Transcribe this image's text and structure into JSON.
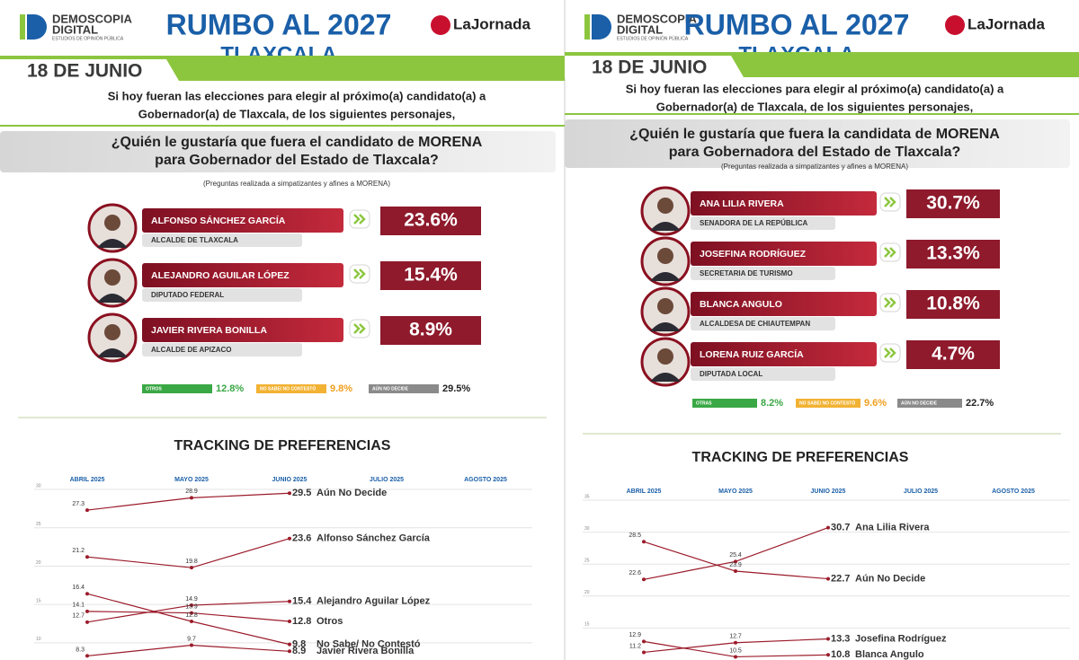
{
  "panels": [
    {
      "brand": "DEMOSCOPIA",
      "brand2": "DIGITAL",
      "brand_sub": "ESTUDIOS DE OPINIÓN PÚBLICA",
      "title": "RUMBO AL 2027",
      "subtitle": "TLAXCALA",
      "partner": "LaJornada",
      "date": "18 DE JUNIO",
      "intro": [
        "Si hoy fueran las elecciones para elegir al próximo(a) candidato(a) a",
        "Gobernador(a) de Tlaxcala, de los siguientes personajes,"
      ],
      "question": [
        "¿Quién le gustaría que fuera el candidato de MORENA",
        "para Gobernador del Estado de Tlaxcala?"
      ],
      "note": "(Preguntas realizada a simpatizantes y afines a MORENA)",
      "candidates": [
        {
          "name": "ALFONSO SÁNCHEZ GARCÍA",
          "role": "ALCALDE DE TLAXCALA",
          "result": "23.6%"
        },
        {
          "name": "ALEJANDRO AGUILAR LÓPEZ",
          "role": "DIPUTADO FEDERAL",
          "result": "15.4%"
        },
        {
          "name": "JAVIER RIVERA BONILLA",
          "role": "ALCALDE DE APIZACO",
          "result": "8.9%"
        }
      ],
      "others": [
        {
          "label": "OTROS",
          "result": "12.8%"
        },
        {
          "label": "NO SABE/ NO CONTESTÓ",
          "result": "9.8%"
        },
        {
          "label": "AÚN NO DECIDE",
          "result": "29.5%"
        }
      ],
      "tracking_title": "TRACKING DE PREFERENCIAS"
    },
    {
      "brand": "DEMOSCOPIA",
      "brand2": "DIGITAL",
      "brand_sub": "ESTUDIOS DE OPINIÓN PÚBLICA",
      "title": "RUMBO AL 2027",
      "subtitle": "TLAXCALA",
      "partner": "LaJornada",
      "date": "18 DE JUNIO",
      "intro": [
        "Si hoy fueran las elecciones para elegir al próximo(a) candidato(a) a",
        "Gobernador(a) de Tlaxcala, de los siguientes personajes,"
      ],
      "question": [
        "¿Quién le gustaría que fuera la candidata de MORENA",
        "para Gobernadora del Estado de Tlaxcala?"
      ],
      "note": "(Preguntas realizada a simpatizantes y afines a MORENA)",
      "candidates": [
        {
          "name": "ANA LILIA RIVERA",
          "role": "SENADORA DE LA REPÚBLICA",
          "result": "30.7%"
        },
        {
          "name": "JOSEFINA RODRÍGUEZ",
          "role": "SECRETARIA DE TURISMO",
          "result": "13.3%"
        },
        {
          "name": "BLANCA ANGULO",
          "role": "ALCALDESA DE CHIAUTEMPAN",
          "result": "10.8%"
        },
        {
          "name": "LORENA RUIZ GARCÍA",
          "role": "DIPUTADA LOCAL",
          "result": "4.7%"
        }
      ],
      "others": [
        {
          "label": "OTRAS",
          "result": "8.2%"
        },
        {
          "label": "NO SABE/ NO CONTESTÓ",
          "result": "9.6%"
        },
        {
          "label": "AÚN NO DECIDE",
          "result": "22.7%"
        }
      ],
      "tracking_title": "TRACKING DE PREFERENCIAS"
    }
  ],
  "chart_data": [
    {
      "type": "line",
      "categories": [
        "ABRIL 2025",
        "MAYO 2025",
        "JUNIO 2025",
        "JULIO 2025",
        "AGOSTO 2025"
      ],
      "series": [
        {
          "name": "Aún No Decide",
          "color": "#9b1b2a",
          "values": [
            27.3,
            28.9,
            29.5,
            null,
            null
          ]
        },
        {
          "name": "Alfonso Sánchez García",
          "color": "#9b1b2a",
          "values": [
            21.2,
            19.8,
            23.6,
            null,
            null
          ]
        },
        {
          "name": "Alejandro Aguilar López",
          "color": "#9b1b2a",
          "values": [
            12.7,
            14.9,
            15.4,
            null,
            null
          ]
        },
        {
          "name": "Otros",
          "color": "#9b1b2a",
          "values": [
            14.1,
            13.9,
            12.8,
            null,
            null
          ]
        },
        {
          "name": "No Sabe/ No Contestó",
          "color": "#9b1b2a",
          "values": [
            16.4,
            12.8,
            9.8,
            null,
            null
          ]
        },
        {
          "name": "Javier Rivera Bonilla",
          "color": "#9b1b2a",
          "values": [
            8.3,
            9.7,
            8.9,
            null,
            null
          ]
        }
      ],
      "ylim": [
        8,
        30
      ],
      "yticks": [
        10,
        15,
        20,
        25,
        30
      ],
      "grid": true
    },
    {
      "type": "line",
      "categories": [
        "ABRIL 2025",
        "MAYO 2025",
        "JUNIO 2025",
        "JULIO 2025",
        "AGOSTO 2025"
      ],
      "series": [
        {
          "name": "Ana Lilia Rivera",
          "color": "#9b1b2a",
          "values": [
            22.6,
            25.4,
            30.7,
            null,
            null
          ]
        },
        {
          "name": "Aún No Decide",
          "color": "#9b1b2a",
          "values": [
            28.5,
            23.9,
            22.7,
            null,
            null
          ]
        },
        {
          "name": "Josefina Rodríguez",
          "color": "#9b1b2a",
          "values": [
            11.2,
            12.7,
            13.3,
            null,
            null
          ]
        },
        {
          "name": "Blanca Angulo",
          "color": "#9b1b2a",
          "values": [
            12.9,
            10.5,
            10.8,
            null,
            null
          ]
        }
      ],
      "ylim": [
        10,
        35
      ],
      "yticks": [
        15,
        20,
        25,
        30,
        35
      ],
      "grid": true
    }
  ]
}
